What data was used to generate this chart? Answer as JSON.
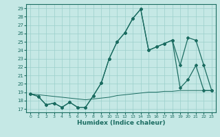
{
  "bg_color": "#c5e8e5",
  "grid_color": "#9acfcb",
  "line_color": "#1a6b60",
  "xlabel": "Humidex (Indice chaleur)",
  "xlim_min": -0.5,
  "xlim_max": 23.5,
  "ylim_min": 16.6,
  "ylim_max": 29.5,
  "x_ticks": [
    0,
    1,
    2,
    3,
    4,
    5,
    6,
    7,
    8,
    9,
    10,
    11,
    12,
    13,
    14,
    15,
    16,
    17,
    18,
    19,
    20,
    21,
    22,
    23
  ],
  "y_ticks": [
    17,
    18,
    19,
    20,
    21,
    22,
    23,
    24,
    25,
    26,
    27,
    28,
    29
  ],
  "line1_x": [
    0,
    1,
    2,
    3,
    4,
    5,
    6,
    7,
    8,
    9,
    10,
    11,
    12,
    13,
    14,
    15,
    16,
    17,
    18,
    19,
    20,
    21,
    22,
    23
  ],
  "line1_y": [
    18.8,
    18.5,
    17.5,
    17.7,
    17.2,
    17.8,
    17.2,
    17.2,
    18.6,
    20.1,
    23.0,
    25.0,
    26.1,
    27.8,
    28.9,
    24.0,
    24.4,
    24.8,
    25.2,
    22.2,
    25.5,
    25.2,
    22.2,
    19.2
  ],
  "line2_x": [
    0,
    1,
    2,
    3,
    4,
    5,
    6,
    7,
    8,
    9,
    10,
    11,
    12,
    13,
    14,
    15,
    16,
    17,
    18,
    19,
    20,
    21,
    22,
    23
  ],
  "line2_y": [
    18.8,
    18.5,
    17.5,
    17.7,
    17.2,
    17.8,
    17.2,
    17.2,
    18.6,
    20.1,
    23.0,
    25.0,
    26.1,
    27.8,
    28.9,
    24.0,
    24.4,
    24.8,
    25.2,
    19.5,
    20.5,
    22.2,
    19.2,
    19.2
  ],
  "line3_x": [
    0,
    1,
    2,
    3,
    4,
    5,
    6,
    7,
    8,
    9,
    10,
    11,
    12,
    13,
    14,
    15,
    16,
    17,
    18,
    19,
    20,
    21,
    22,
    23
  ],
  "line3_y": [
    18.8,
    18.7,
    18.6,
    18.5,
    18.4,
    18.3,
    18.2,
    18.1,
    18.2,
    18.3,
    18.4,
    18.6,
    18.7,
    18.8,
    18.9,
    19.0,
    19.0,
    19.1,
    19.1,
    19.2,
    19.2,
    19.2,
    19.2,
    19.2
  ]
}
